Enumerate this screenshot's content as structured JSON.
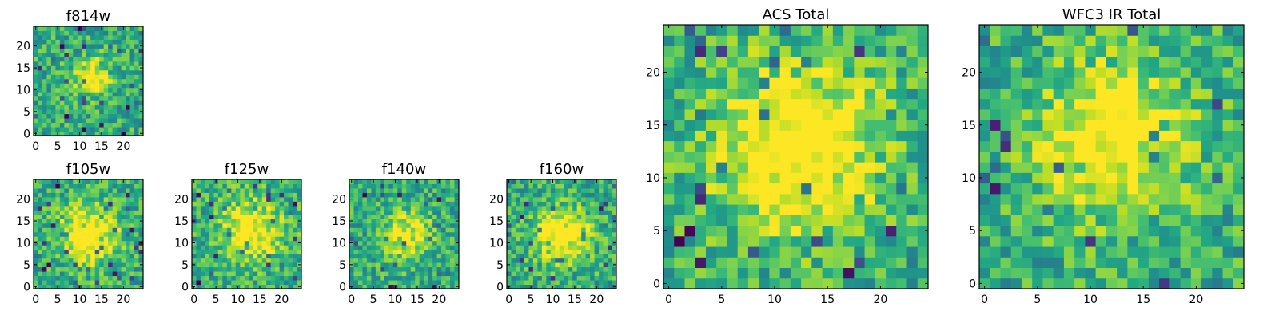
{
  "figure": {
    "colormap": "viridis",
    "axis_ticks": {
      "small_x": [
        "0",
        "5",
        "10",
        "15",
        "20"
      ],
      "small_y": [
        "0",
        "5",
        "10",
        "15",
        "20"
      ],
      "large_x": [
        "0",
        "5",
        "10",
        "15",
        "20"
      ],
      "large_y": [
        "0",
        "5",
        "10",
        "15",
        "20"
      ]
    }
  },
  "chart_data": [
    {
      "type": "heatmap",
      "title": "f814w",
      "grid_size": [
        25,
        25
      ],
      "xlim": [
        0,
        24
      ],
      "ylim": [
        0,
        24
      ],
      "values": "pixel noise with a faint bright blob near (13, 13)"
    },
    {
      "type": "heatmap",
      "title": "f105w",
      "grid_size": [
        25,
        25
      ],
      "xlim": [
        0,
        24
      ],
      "ylim": [
        0,
        24
      ],
      "values": "pixel noise with a bright blob near (12, 12)"
    },
    {
      "type": "heatmap",
      "title": "f125w",
      "grid_size": [
        25,
        25
      ],
      "xlim": [
        0,
        24
      ],
      "ylim": [
        0,
        24
      ],
      "values": "pixel noise with a bright blob near (13, 13)"
    },
    {
      "type": "heatmap",
      "title": "f140w",
      "grid_size": [
        25,
        25
      ],
      "xlim": [
        0,
        24
      ],
      "ylim": [
        0,
        24
      ],
      "values": "pixel noise with a faint bright blob near (13, 12)"
    },
    {
      "type": "heatmap",
      "title": "f160w",
      "grid_size": [
        25,
        25
      ],
      "xlim": [
        0,
        24
      ],
      "ylim": [
        0,
        24
      ],
      "values": "pixel noise with a bright blob near (12, 12)"
    },
    {
      "type": "heatmap",
      "title": "ACS Total",
      "grid_size": [
        25,
        25
      ],
      "xlim": [
        0,
        24
      ],
      "ylim": [
        0,
        24
      ],
      "values": "pixel noise with a bright blob near (12, 13)"
    },
    {
      "type": "heatmap",
      "title": "WFC3 IR Total",
      "grid_size": [
        25,
        25
      ],
      "xlim": [
        0,
        24
      ],
      "ylim": [
        0,
        24
      ],
      "values": "pixel noise with a bright blob near (12, 14)"
    }
  ]
}
